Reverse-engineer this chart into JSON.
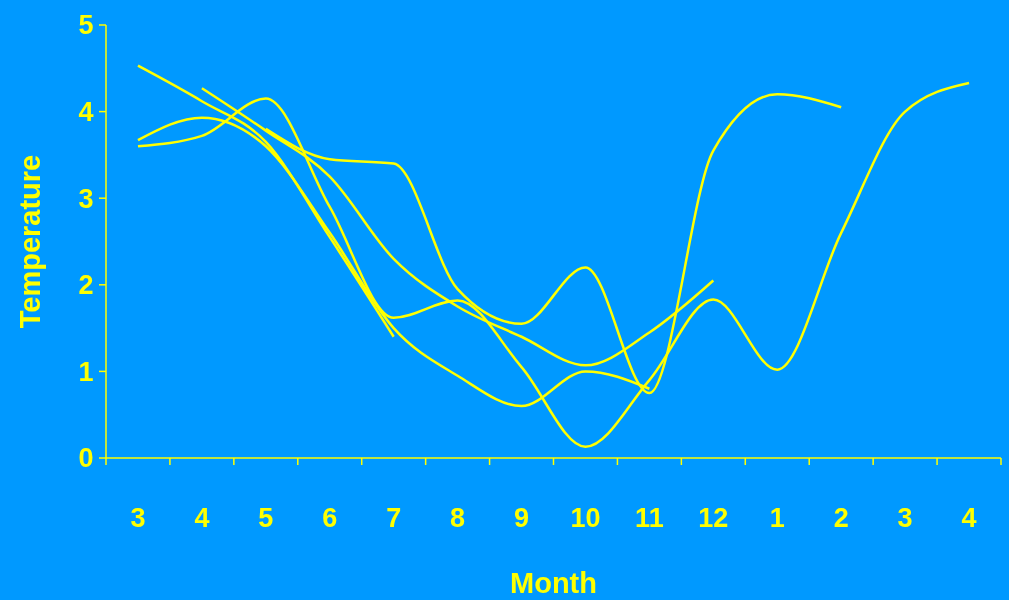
{
  "chart_data": {
    "type": "line",
    "xlabel": "Month",
    "ylabel": "Temperature",
    "ylim": [
      0,
      5
    ],
    "yticks": [
      0,
      1,
      2,
      3,
      4,
      5
    ],
    "categories": [
      "3",
      "4",
      "5",
      "6",
      "7",
      "8",
      "9",
      "10",
      "11",
      "12",
      "1",
      "2",
      "3",
      "4"
    ],
    "grid": false,
    "marker": "none",
    "line_style": "solid",
    "series": [
      {
        "color": "#ffff00",
        "values": [
          4.53,
          4.12,
          3.65,
          2.55,
          1.4,
          null,
          null,
          null,
          null,
          null,
          null,
          null,
          null,
          null
        ]
      },
      {
        "color": "#ffff00",
        "values": [
          3.67,
          3.93,
          3.6,
          2.6,
          1.5,
          0.95,
          0.6,
          1.0,
          0.8,
          null,
          null,
          null,
          null,
          null
        ]
      },
      {
        "color": "#ffff00",
        "values": [
          null,
          null,
          3.8,
          3.45,
          3.4,
          1.95,
          1.55,
          2.2,
          0.75,
          3.55,
          4.2,
          4.05,
          null,
          null
        ]
      },
      {
        "color": "#ffff00",
        "values": [
          3.6,
          3.72,
          4.15,
          2.9,
          1.62,
          1.82,
          1.05,
          0.13,
          0.9,
          1.83,
          1.02,
          2.6,
          4.0,
          4.33
        ]
      },
      {
        "color": "#ffff00",
        "values": [
          null,
          4.27,
          3.78,
          3.25,
          2.3,
          1.75,
          1.4,
          1.07,
          1.45,
          2.05,
          null,
          null,
          null,
          null
        ]
      }
    ]
  }
}
